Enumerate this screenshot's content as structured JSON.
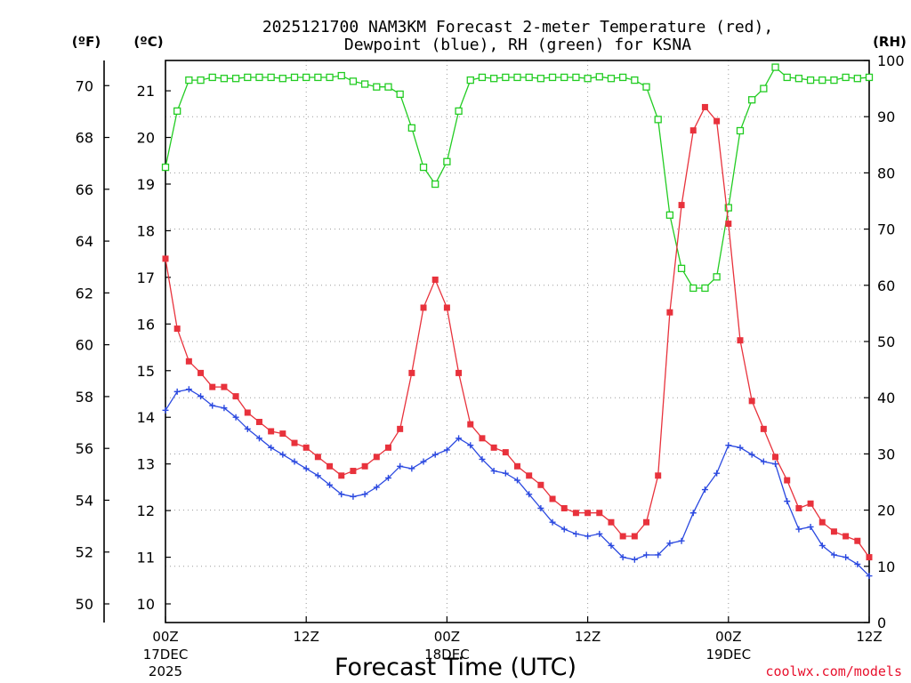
{
  "chart_data": {
    "type": "line",
    "title_line1": "2025121700 NAM3KM Forecast 2-meter Temperature (red),",
    "title_line2": "Dewpoint (blue), RH (green) for KSNA",
    "units": {
      "fahrenheit": "(ºF)",
      "celsius": "(ºC)",
      "rh": "(RH)"
    },
    "xlabel": "Forecast Time (UTC)",
    "credit": "coolwx.com/models",
    "x_range_hours": [
      0,
      60
    ],
    "x_ticks": [
      {
        "hour": 0,
        "label": "00Z",
        "sub1": "17DEC",
        "sub2": "2025"
      },
      {
        "hour": 12,
        "label": "12Z",
        "sub1": "",
        "sub2": ""
      },
      {
        "hour": 24,
        "label": "00Z",
        "sub1": "18DEC",
        "sub2": ""
      },
      {
        "hour": 36,
        "label": "12Z",
        "sub1": "",
        "sub2": ""
      },
      {
        "hour": 48,
        "label": "00Z",
        "sub1": "19DEC",
        "sub2": ""
      },
      {
        "hour": 60,
        "label": "12Z",
        "sub1": "",
        "sub2": ""
      }
    ],
    "y_celsius": {
      "min": 9.6,
      "max": 21.65,
      "ticks": [
        10,
        11,
        12,
        13,
        14,
        15,
        16,
        17,
        18,
        19,
        20,
        21
      ]
    },
    "y_fahrenheit": {
      "ticks": [
        50,
        52,
        54,
        56,
        58,
        60,
        62,
        64,
        66,
        68,
        70
      ]
    },
    "y_rh": {
      "min": 0,
      "max": 100,
      "ticks": [
        0,
        10,
        20,
        30,
        40,
        50,
        60,
        70,
        80,
        90,
        100
      ]
    },
    "series": [
      {
        "name": "Temperature",
        "unit": "C",
        "color": "#e8323c",
        "marker": "filled-square",
        "values": [
          17.4,
          15.9,
          15.2,
          14.95,
          14.65,
          14.65,
          14.45,
          14.1,
          13.9,
          13.7,
          13.65,
          13.45,
          13.35,
          13.15,
          12.95,
          12.75,
          12.85,
          12.95,
          13.15,
          13.35,
          13.75,
          14.95,
          16.35,
          16.95,
          16.35,
          14.95,
          13.85,
          13.55,
          13.35,
          13.25,
          12.95,
          12.75,
          12.55,
          12.25,
          12.05,
          11.95,
          11.95,
          11.95,
          11.75,
          11.45,
          11.45,
          11.75,
          12.75,
          16.25,
          18.55,
          20.15,
          20.65,
          20.35,
          18.15,
          15.65,
          14.35,
          13.75,
          13.15,
          12.65,
          12.05,
          12.15,
          11.75,
          11.55,
          11.45,
          11.35,
          11.0
        ]
      },
      {
        "name": "Dewpoint",
        "unit": "C",
        "color": "#2b49e0",
        "marker": "plus",
        "values": [
          14.15,
          14.55,
          14.6,
          14.45,
          14.25,
          14.2,
          14.0,
          13.75,
          13.55,
          13.35,
          13.2,
          13.05,
          12.9,
          12.75,
          12.55,
          12.35,
          12.3,
          12.35,
          12.5,
          12.7,
          12.95,
          12.9,
          13.05,
          13.2,
          13.3,
          13.55,
          13.4,
          13.1,
          12.85,
          12.8,
          12.65,
          12.35,
          12.05,
          11.75,
          11.6,
          11.5,
          11.45,
          11.5,
          11.25,
          11.0,
          10.95,
          11.05,
          11.05,
          11.3,
          11.35,
          11.95,
          12.45,
          12.8,
          13.4,
          13.35,
          13.2,
          13.05,
          13.0,
          12.2,
          11.6,
          11.65,
          11.25,
          11.05,
          11.0,
          10.85,
          10.6
        ]
      },
      {
        "name": "RH",
        "unit": "%",
        "color": "#22cc22",
        "marker": "open-square",
        "values": [
          81,
          91,
          96.5,
          96.5,
          97,
          96.8,
          96.8,
          97,
          97,
          97,
          96.8,
          97,
          97,
          97,
          97,
          97.3,
          96.3,
          95.8,
          95.3,
          95.3,
          94,
          88,
          81,
          78,
          82,
          91,
          96.5,
          97,
          96.8,
          97,
          97,
          97,
          96.8,
          97,
          97,
          97,
          96.8,
          97.1,
          96.8,
          97,
          96.5,
          95.3,
          89.5,
          72.5,
          63,
          59.5,
          59.5,
          61.5,
          73.8,
          87.5,
          93,
          95,
          98.8,
          97,
          96.8,
          96.5,
          96.5,
          96.5,
          97,
          96.8,
          97
        ]
      }
    ]
  }
}
